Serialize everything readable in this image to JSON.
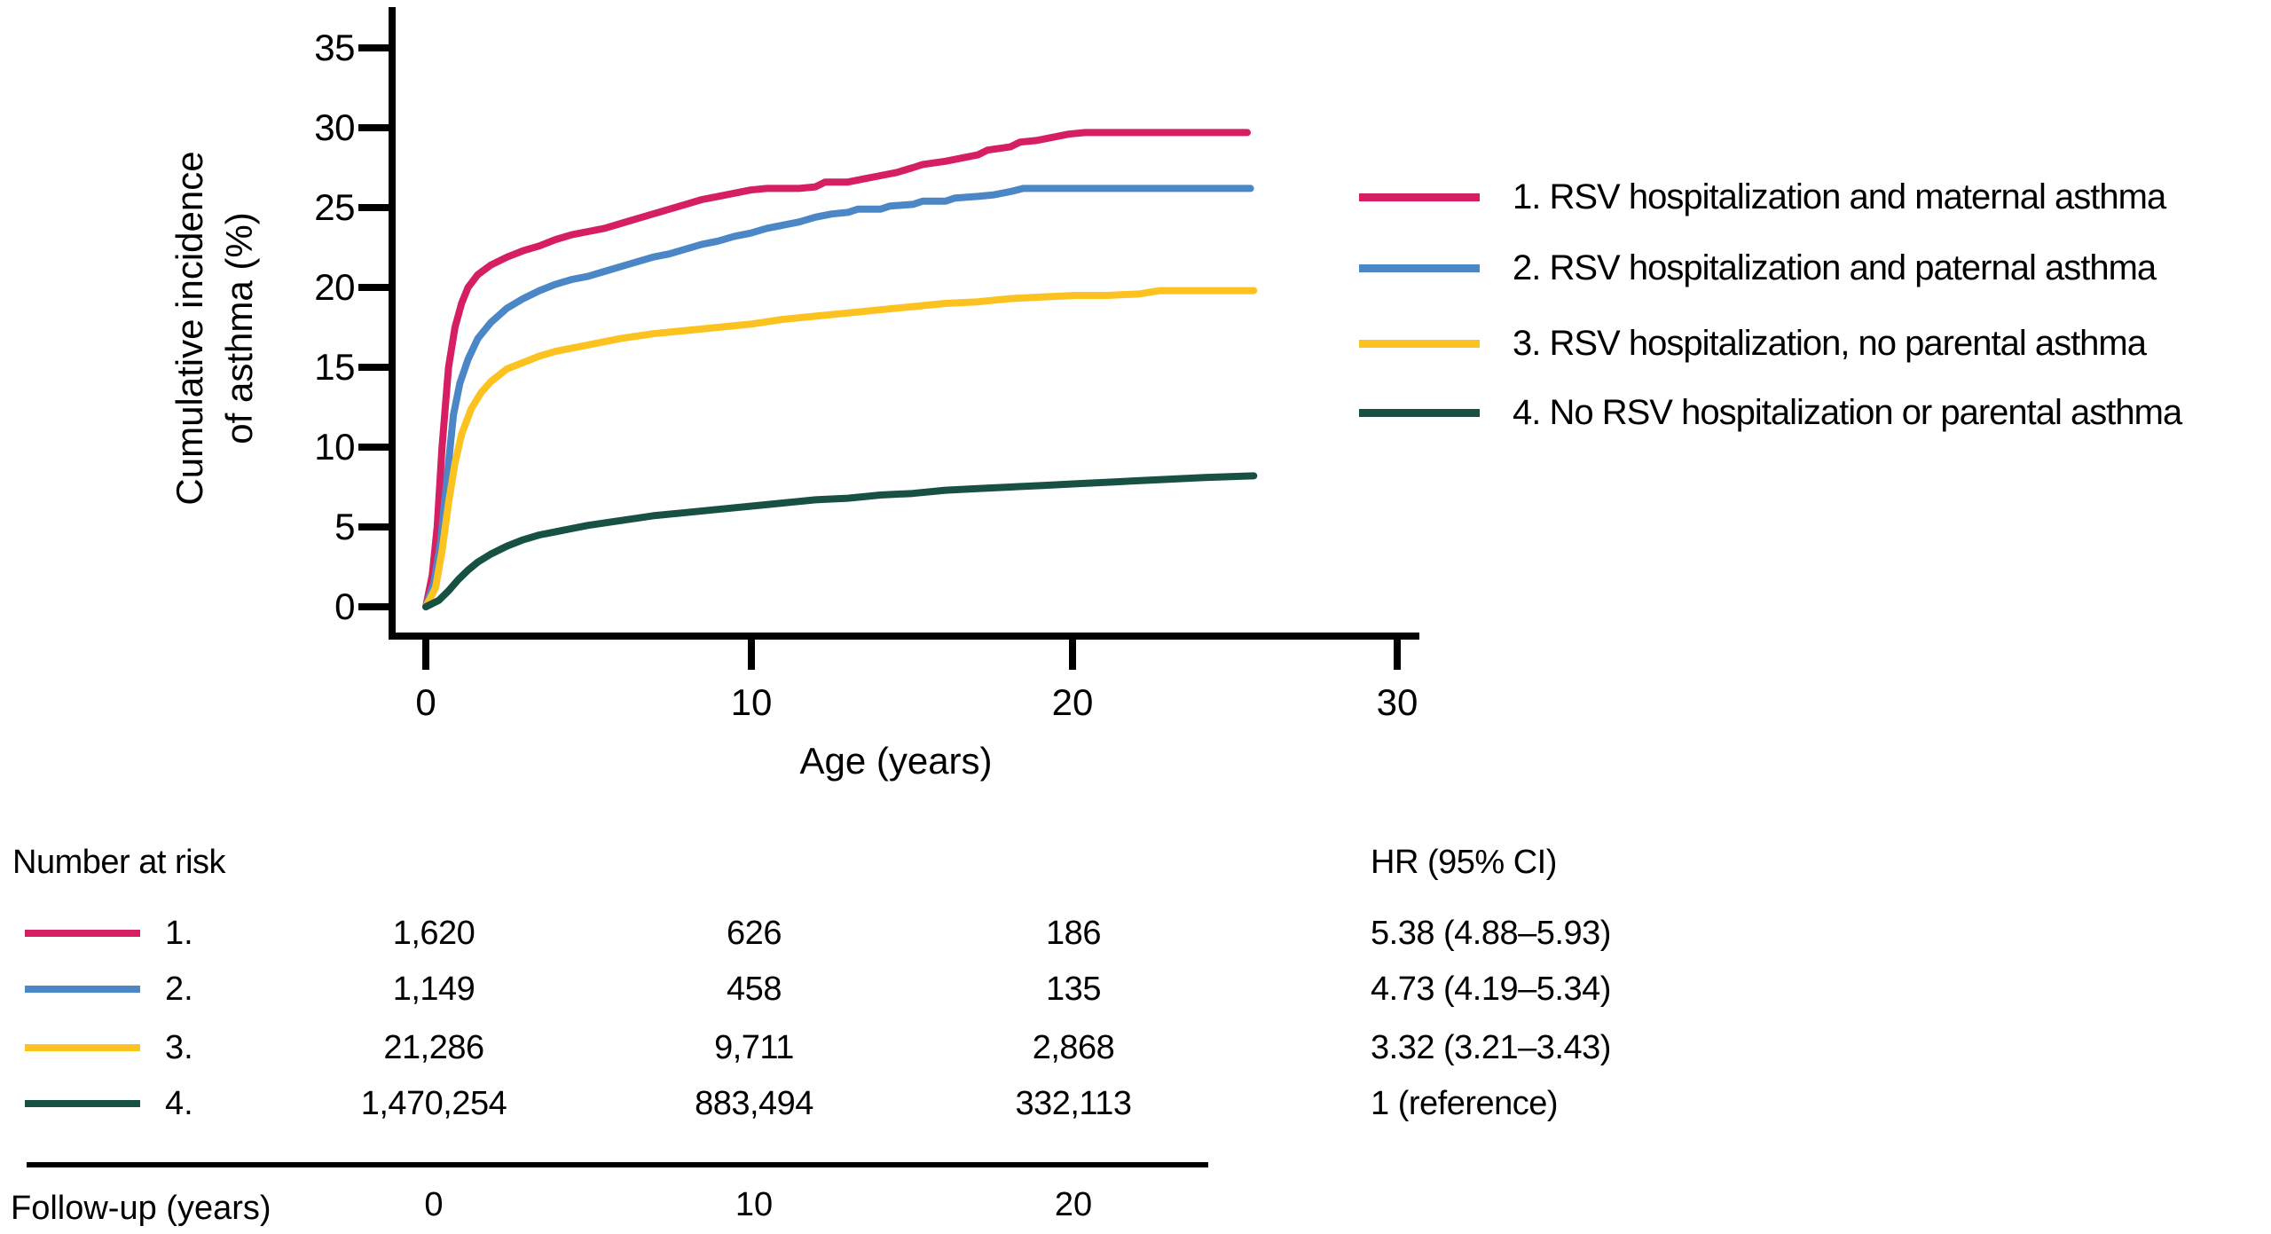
{
  "figure": {
    "background": "#ffffff",
    "text_color": "#000000",
    "axis_color": "#000000"
  },
  "chart_data": {
    "type": "line",
    "subtype": "cumulative-incidence-step-curves",
    "title": "",
    "xlabel": "Age (years)",
    "ylabel_line1": "Cumulative incidence",
    "ylabel_line2": "of asthma (%)",
    "xlim": [
      0,
      30
    ],
    "ylim": [
      0,
      35
    ],
    "xticks": [
      0,
      10,
      20,
      30
    ],
    "yticks": [
      0,
      5,
      10,
      15,
      20,
      25,
      30,
      35
    ],
    "xtick_labels": [
      "0",
      "10",
      "20",
      "30"
    ],
    "ytick_labels_top_to_bottom": [
      "35",
      "30",
      "25",
      "20",
      "15",
      "10",
      "5",
      "0"
    ],
    "grid": false,
    "legend_position": "right",
    "series": [
      {
        "name": "1. RSV hospitalization and maternal asthma",
        "color": "#D61E62",
        "points": [
          [
            0,
            0
          ],
          [
            0.2,
            2
          ],
          [
            0.35,
            5
          ],
          [
            0.5,
            10
          ],
          [
            0.7,
            15
          ],
          [
            0.9,
            17.5
          ],
          [
            1.1,
            19
          ],
          [
            1.3,
            20
          ],
          [
            1.6,
            20.8
          ],
          [
            2,
            21.4
          ],
          [
            2.5,
            21.9
          ],
          [
            3,
            22.3
          ],
          [
            3.5,
            22.6
          ],
          [
            4,
            23.0
          ],
          [
            4.5,
            23.3
          ],
          [
            5,
            23.5
          ],
          [
            5.5,
            23.7
          ],
          [
            6,
            24.0
          ],
          [
            6.5,
            24.3
          ],
          [
            7,
            24.6
          ],
          [
            7.5,
            24.9
          ],
          [
            8,
            25.2
          ],
          [
            8.5,
            25.5
          ],
          [
            9,
            25.7
          ],
          [
            9.5,
            25.9
          ],
          [
            10,
            26.1
          ],
          [
            10.5,
            26.2
          ],
          [
            11.5,
            26.2
          ],
          [
            12,
            26.3
          ],
          [
            12.3,
            26.6
          ],
          [
            13,
            26.6
          ],
          [
            13.5,
            26.8
          ],
          [
            14,
            27.0
          ],
          [
            14.5,
            27.2
          ],
          [
            15,
            27.5
          ],
          [
            15.3,
            27.7
          ],
          [
            16,
            27.9
          ],
          [
            16.5,
            28.1
          ],
          [
            17,
            28.3
          ],
          [
            17.3,
            28.6
          ],
          [
            18,
            28.8
          ],
          [
            18.3,
            29.1
          ],
          [
            18.8,
            29.2
          ],
          [
            19.3,
            29.4
          ],
          [
            19.8,
            29.6
          ],
          [
            20.3,
            29.7
          ],
          [
            25.3,
            29.7
          ]
        ]
      },
      {
        "name": "2. RSV hospitalization and paternal asthma",
        "color": "#4B86C6",
        "points": [
          [
            0,
            0
          ],
          [
            0.25,
            1.5
          ],
          [
            0.45,
            4
          ],
          [
            0.65,
            8
          ],
          [
            0.85,
            12
          ],
          [
            1.05,
            14
          ],
          [
            1.3,
            15.5
          ],
          [
            1.6,
            16.8
          ],
          [
            2,
            17.8
          ],
          [
            2.5,
            18.7
          ],
          [
            3,
            19.3
          ],
          [
            3.5,
            19.8
          ],
          [
            4,
            20.2
          ],
          [
            4.5,
            20.5
          ],
          [
            5,
            20.7
          ],
          [
            5.5,
            21.0
          ],
          [
            6,
            21.3
          ],
          [
            6.5,
            21.6
          ],
          [
            7,
            21.9
          ],
          [
            7.5,
            22.1
          ],
          [
            8,
            22.4
          ],
          [
            8.5,
            22.7
          ],
          [
            9,
            22.9
          ],
          [
            9.5,
            23.2
          ],
          [
            10,
            23.4
          ],
          [
            10.5,
            23.7
          ],
          [
            11,
            23.9
          ],
          [
            11.5,
            24.1
          ],
          [
            12,
            24.4
          ],
          [
            12.5,
            24.6
          ],
          [
            13,
            24.7
          ],
          [
            13.3,
            24.9
          ],
          [
            14,
            24.9
          ],
          [
            14.3,
            25.1
          ],
          [
            15,
            25.2
          ],
          [
            15.3,
            25.4
          ],
          [
            16,
            25.4
          ],
          [
            16.3,
            25.6
          ],
          [
            17,
            25.7
          ],
          [
            17.5,
            25.8
          ],
          [
            18,
            26.0
          ],
          [
            18.4,
            26.2
          ],
          [
            25.4,
            26.2
          ]
        ]
      },
      {
        "name": "3. RSV hospitalization, no parental asthma",
        "color": "#FCC220",
        "points": [
          [
            0,
            0
          ],
          [
            0.3,
            1.2
          ],
          [
            0.5,
            3.5
          ],
          [
            0.7,
            6.5
          ],
          [
            0.9,
            9
          ],
          [
            1.1,
            10.8
          ],
          [
            1.4,
            12.4
          ],
          [
            1.7,
            13.4
          ],
          [
            2,
            14.1
          ],
          [
            2.5,
            14.9
          ],
          [
            3,
            15.3
          ],
          [
            3.5,
            15.7
          ],
          [
            4,
            16.0
          ],
          [
            4.5,
            16.2
          ],
          [
            5,
            16.4
          ],
          [
            6,
            16.8
          ],
          [
            7,
            17.1
          ],
          [
            8,
            17.3
          ],
          [
            9,
            17.5
          ],
          [
            10,
            17.7
          ],
          [
            11,
            18.0
          ],
          [
            12,
            18.2
          ],
          [
            13,
            18.4
          ],
          [
            14,
            18.6
          ],
          [
            15,
            18.8
          ],
          [
            16,
            19.0
          ],
          [
            17,
            19.1
          ],
          [
            18,
            19.3
          ],
          [
            19,
            19.4
          ],
          [
            20,
            19.5
          ],
          [
            21,
            19.5
          ],
          [
            22,
            19.6
          ],
          [
            22.6,
            19.8
          ],
          [
            25.5,
            19.8
          ]
        ]
      },
      {
        "name": "4. No RSV hospitalization or parental asthma",
        "color": "#165143",
        "points": [
          [
            0,
            0
          ],
          [
            0.4,
            0.4
          ],
          [
            0.7,
            1.0
          ],
          [
            1,
            1.7
          ],
          [
            1.3,
            2.3
          ],
          [
            1.6,
            2.8
          ],
          [
            2,
            3.3
          ],
          [
            2.5,
            3.8
          ],
          [
            3,
            4.2
          ],
          [
            3.5,
            4.5
          ],
          [
            4,
            4.7
          ],
          [
            5,
            5.1
          ],
          [
            6,
            5.4
          ],
          [
            7,
            5.7
          ],
          [
            8,
            5.9
          ],
          [
            9,
            6.1
          ],
          [
            10,
            6.3
          ],
          [
            11,
            6.5
          ],
          [
            12,
            6.7
          ],
          [
            13,
            6.8
          ],
          [
            14,
            7.0
          ],
          [
            15,
            7.1
          ],
          [
            16,
            7.3
          ],
          [
            17,
            7.4
          ],
          [
            18,
            7.5
          ],
          [
            19,
            7.6
          ],
          [
            20,
            7.7
          ],
          [
            21,
            7.8
          ],
          [
            22,
            7.9
          ],
          [
            23,
            8.0
          ],
          [
            24,
            8.1
          ],
          [
            25.5,
            8.2
          ]
        ]
      }
    ]
  },
  "risk_table": {
    "title": "Number at risk",
    "hr_header": "HR (95% CI)",
    "rows": [
      {
        "label": "1.",
        "counts": [
          "1,620",
          "626",
          "186"
        ],
        "hr": "5.38 (4.88–5.93)"
      },
      {
        "label": "2.",
        "counts": [
          "1,149",
          "458",
          "135"
        ],
        "hr": "4.73 (4.19–5.34)"
      },
      {
        "label": "3.",
        "counts": [
          "21,286",
          "9,711",
          "2,868"
        ],
        "hr": "3.32 (3.21–3.43)"
      },
      {
        "label": "4.",
        "counts": [
          "1,470,254",
          "883,494",
          "332,113"
        ],
        "hr": "1 (reference)"
      }
    ],
    "footer_label": "Follow-up (years)",
    "footer_ticks": [
      "0",
      "10",
      "20"
    ]
  }
}
